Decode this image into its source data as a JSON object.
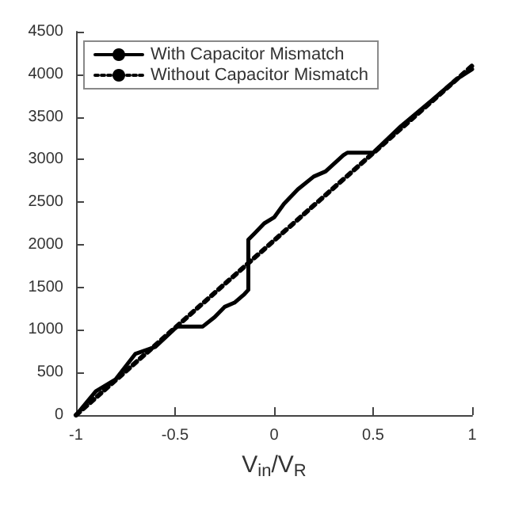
{
  "chart_data": {
    "type": "line",
    "xlabel": "V$_{in}$/V$_{R}$",
    "xlim": [
      -1,
      1
    ],
    "xticks": [
      -1,
      -0.5,
      0,
      0.5,
      1
    ],
    "ylim": [
      0,
      4500
    ],
    "yticks": [
      0,
      500,
      1000,
      1500,
      2000,
      2500,
      3000,
      3500,
      4000,
      4500
    ],
    "grid": false,
    "legend": "top left",
    "marker": "none",
    "series": [
      {
        "name": "With Capacitor Mismatch",
        "color": "#000000",
        "line_style": "solid",
        "x": [
          -1,
          -0.9,
          -0.8,
          -0.7,
          -0.6,
          -0.49,
          -0.36,
          -0.3,
          -0.25,
          -0.2,
          -0.15,
          -0.13,
          -0.13,
          -0.1,
          -0.05,
          0,
          0.05,
          0.12,
          0.2,
          0.26,
          0.35,
          0.37,
          0.5,
          0.64,
          0.8,
          0.92,
          1
        ],
        "values": [
          0,
          280,
          420,
          720,
          800,
          1040,
          1040,
          1150,
          1270,
          1320,
          1420,
          1470,
          2060,
          2130,
          2250,
          2320,
          2480,
          2650,
          2800,
          2860,
          3050,
          3080,
          3080,
          3390,
          3700,
          3940,
          4060
        ]
      },
      {
        "name": "Without Capacitor Mismatch",
        "color": "#000000",
        "line_style": "dotted",
        "x": [
          -1,
          1
        ],
        "values": [
          0,
          4100
        ]
      }
    ]
  }
}
